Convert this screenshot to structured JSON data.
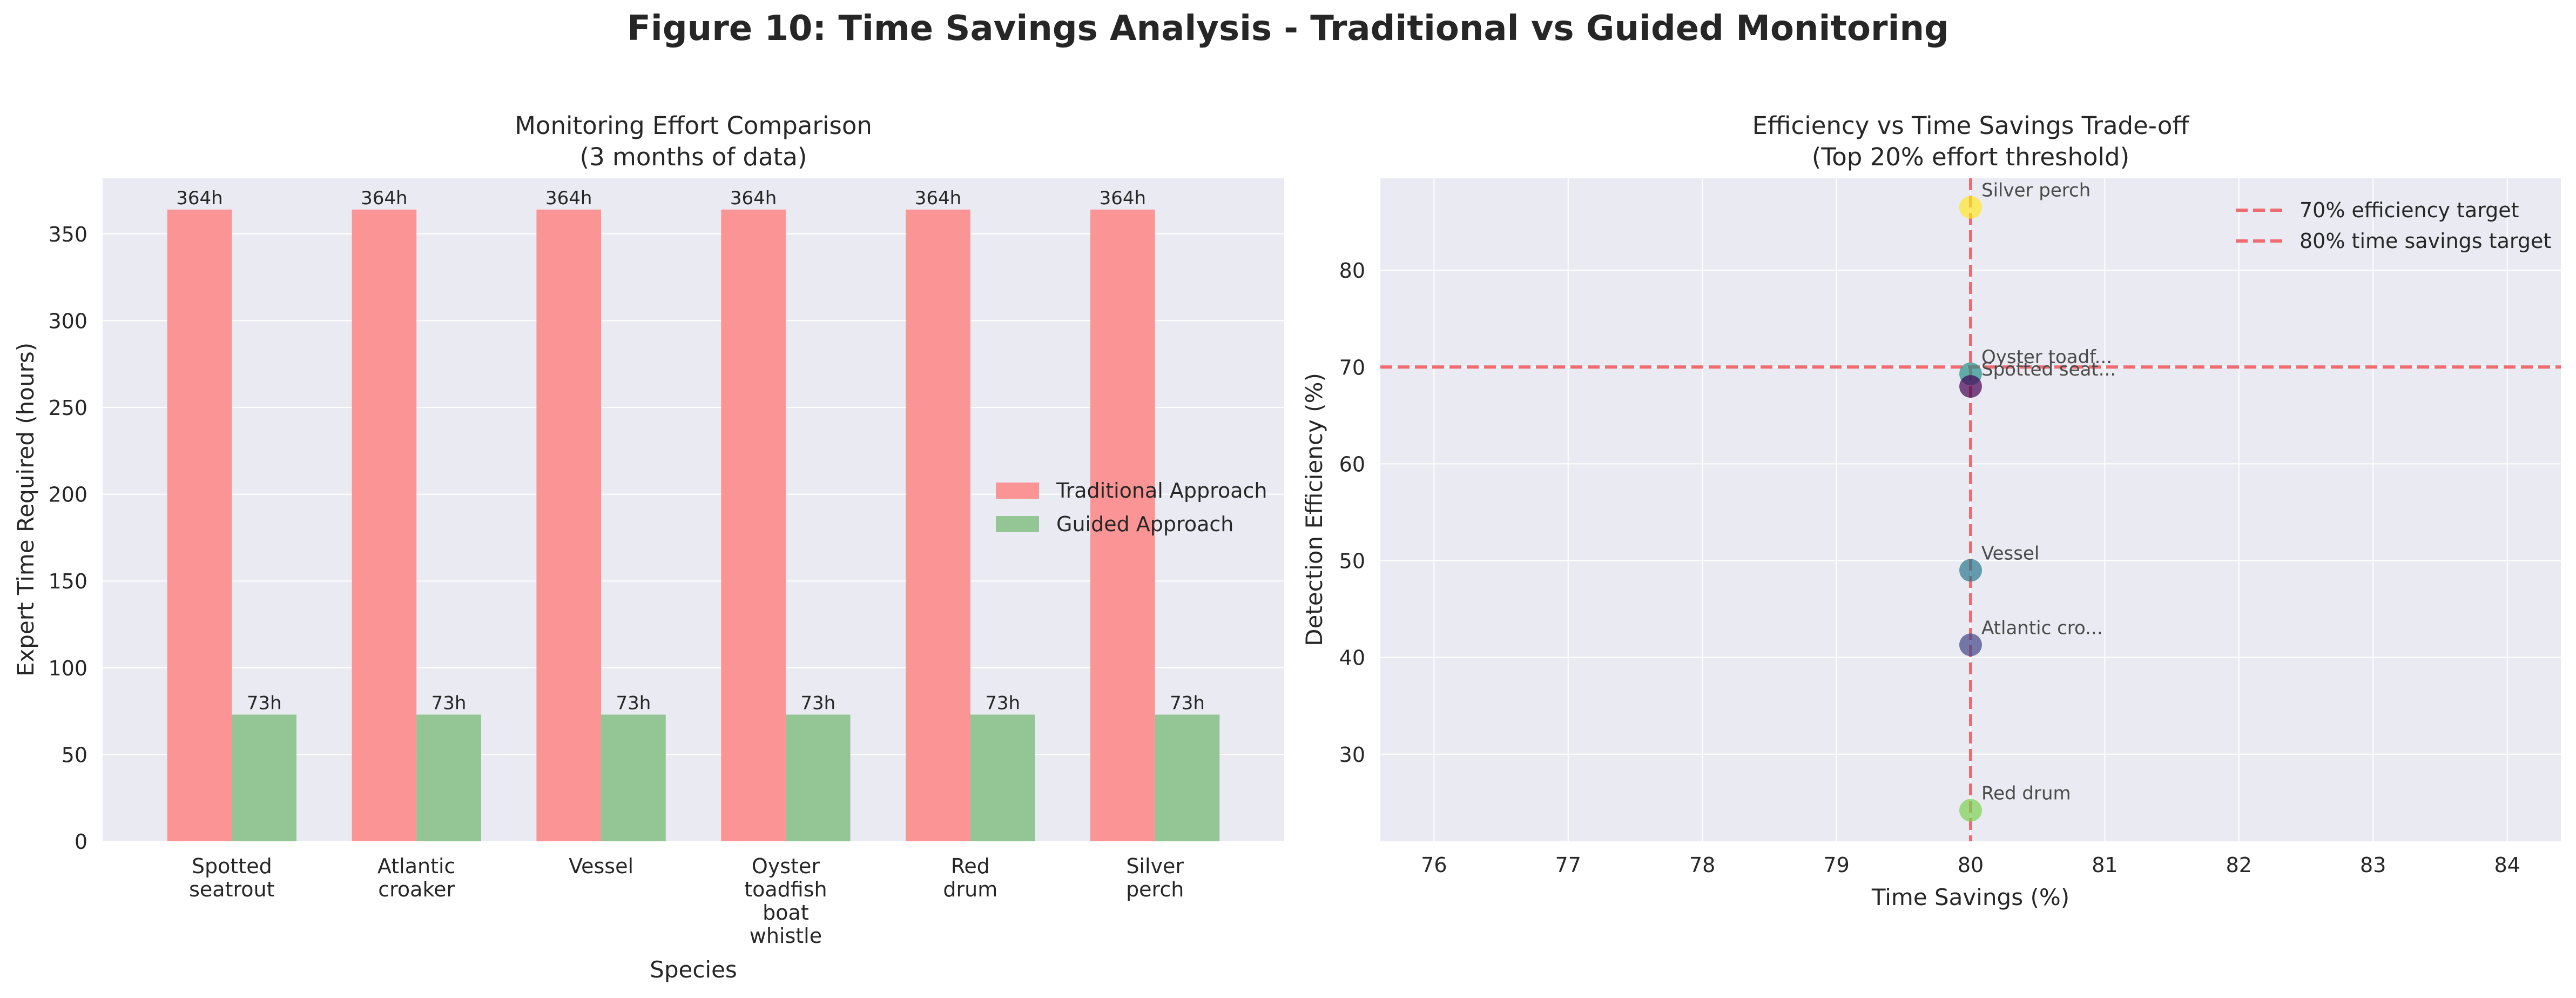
{
  "figure_title": "Figure 10: Time Savings Analysis - Traditional vs Guided Monitoring",
  "colors": {
    "panel_bg": "#eaeaf2",
    "grid": "#ffffff",
    "traditional": "#fa9495",
    "guided": "#93c694",
    "threshold_line": "#ef6b70"
  },
  "chart_data": [
    {
      "type": "bar",
      "title": "Monitoring Effort Comparison",
      "subtitle": "(3 months of data)",
      "xlabel": "Species",
      "ylabel": "Expert Time Required (hours)",
      "ylim": [
        0,
        382
      ],
      "yticks": [
        0,
        50,
        100,
        150,
        200,
        250,
        300,
        350
      ],
      "grid": true,
      "legend_position": "center-right",
      "categories": [
        [
          "Spotted",
          "seatrout"
        ],
        [
          "Atlantic",
          "croaker"
        ],
        [
          "Vessel"
        ],
        [
          "Oyster",
          "toadfish",
          "boat",
          "whistle"
        ],
        [
          "Red",
          "drum"
        ],
        [
          "Silver",
          "perch"
        ]
      ],
      "series": [
        {
          "name": "Traditional Approach",
          "values": [
            364,
            364,
            364,
            364,
            364,
            364
          ],
          "labels": [
            "364h",
            "364h",
            "364h",
            "364h",
            "364h",
            "364h"
          ]
        },
        {
          "name": "Guided Approach",
          "values": [
            73,
            73,
            73,
            73,
            73,
            73
          ],
          "labels": [
            "73h",
            "73h",
            "73h",
            "73h",
            "73h",
            "73h"
          ]
        }
      ]
    },
    {
      "type": "scatter",
      "title": "Efficiency vs Time Savings Trade-off",
      "subtitle": "(Top 20% effort threshold)",
      "xlabel": "Time Savings (%)",
      "ylabel": "Detection Efficiency (%)",
      "xlim": [
        75.6,
        84.4
      ],
      "ylim": [
        21,
        89.5
      ],
      "xticks": [
        76,
        77,
        78,
        79,
        80,
        81,
        82,
        83,
        84
      ],
      "yticks": [
        30,
        40,
        50,
        60,
        70,
        80
      ],
      "grid": true,
      "legend_position": "top-right",
      "reference_lines": [
        {
          "label": "70% efficiency target",
          "orientation": "horizontal",
          "value": 70
        },
        {
          "label": "80% time savings target",
          "orientation": "vertical",
          "value": 80
        }
      ],
      "points": [
        {
          "label": "Silver perch",
          "x": 80,
          "y": 86.5,
          "color": "#fde725"
        },
        {
          "label": "Oyster toadf...",
          "x": 80,
          "y": 69.3,
          "color": "#22908c"
        },
        {
          "label": "Spotted seat...",
          "x": 80,
          "y": 68.0,
          "color": "#440154"
        },
        {
          "label": "Vessel",
          "x": 80,
          "y": 49.0,
          "color": "#2a788e"
        },
        {
          "label": "Atlantic cro...",
          "x": 80,
          "y": 41.3,
          "color": "#414487"
        },
        {
          "label": "Red drum",
          "x": 80,
          "y": 24.2,
          "color": "#7ad151"
        }
      ]
    }
  ]
}
